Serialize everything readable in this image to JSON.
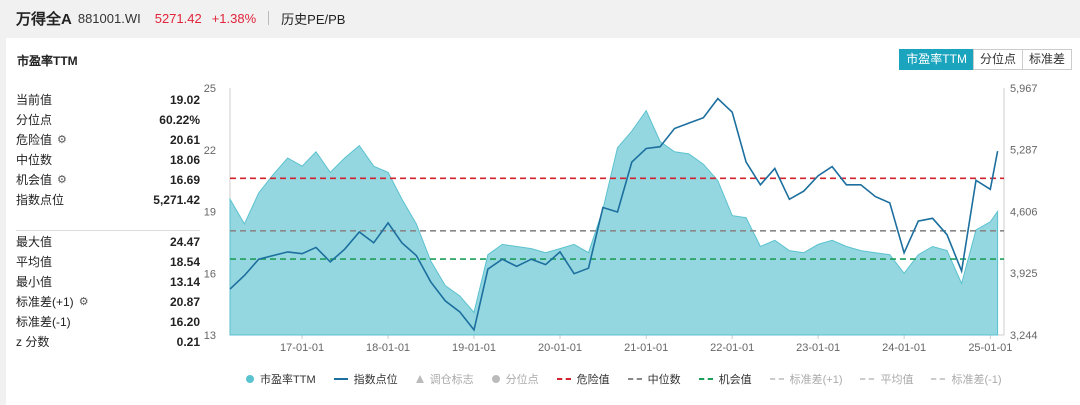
{
  "header": {
    "name": "万得全A",
    "code": "881001.WI",
    "price": "5271.42",
    "change": "+1.38%",
    "tab": "历史PE/PB"
  },
  "card": {
    "title": "市盈率TTM",
    "buttons": [
      "市盈率TTM",
      "分位点",
      "标准差"
    ],
    "active_button": 0
  },
  "stats_top": [
    {
      "label": "当前值",
      "value": "19.02",
      "gear": false
    },
    {
      "label": "分位点",
      "value": "60.22%",
      "gear": false
    },
    {
      "label": "危险值",
      "value": "20.61",
      "gear": true
    },
    {
      "label": "中位数",
      "value": "18.06",
      "gear": false
    },
    {
      "label": "机会值",
      "value": "16.69",
      "gear": true
    },
    {
      "label": "指数点位",
      "value": "5,271.42",
      "gear": false
    }
  ],
  "stats_bottom": [
    {
      "label": "最大值",
      "value": "24.47",
      "gear": false
    },
    {
      "label": "平均值",
      "value": "18.54",
      "gear": false
    },
    {
      "label": "最小值",
      "value": "13.14",
      "gear": false
    },
    {
      "label": "标准差(+1)",
      "value": "20.87",
      "gear": true
    },
    {
      "label": "标准差(-1)",
      "value": "16.20",
      "gear": false
    },
    {
      "label": "z 分数",
      "value": "0.21",
      "gear": false
    }
  ],
  "legend": [
    {
      "label": "市盈率TTM",
      "kind": "dot",
      "color": "#5bc2cf",
      "active": true
    },
    {
      "label": "指数点位",
      "kind": "line",
      "color": "#1c6f9e",
      "active": true
    },
    {
      "label": "调仓标志",
      "kind": "tri",
      "color": "#bbbbbb",
      "active": false
    },
    {
      "label": "分位点",
      "kind": "dot",
      "color": "#bbbbbb",
      "active": false
    },
    {
      "label": "危险值",
      "kind": "dash",
      "color": "#d0232e",
      "active": true
    },
    {
      "label": "中位数",
      "kind": "dash",
      "color": "#888888",
      "active": true
    },
    {
      "label": "机会值",
      "kind": "dash",
      "color": "#1f9e5a",
      "active": true
    },
    {
      "label": "标准差(+1)",
      "kind": "dash",
      "color": "#cccccc",
      "active": false
    },
    {
      "label": "平均值",
      "kind": "dash",
      "color": "#cccccc",
      "active": false
    },
    {
      "label": "标准差(-1)",
      "kind": "dash",
      "color": "#cccccc",
      "active": false
    }
  ],
  "chart_data": {
    "type": "area",
    "xlabel": "",
    "ylabel": "",
    "x_ticks": [
      "17-01-01",
      "18-01-01",
      "19-01-01",
      "20-01-01",
      "21-01-01",
      "22-01-01",
      "23-01-01",
      "24-01-01",
      "25-01-01"
    ],
    "y_ticks_left": [
      "13",
      "16",
      "19",
      "22",
      "25"
    ],
    "y_ticks_right": [
      "3,244",
      "3,925",
      "4,606",
      "5,287",
      "5,967"
    ],
    "ylim_left": [
      13,
      25
    ],
    "ylim_right": [
      3244,
      5967
    ],
    "x_range": [
      "2016-03-01",
      "2025-02-28"
    ],
    "reference_lines": [
      {
        "name": "危险值",
        "value": 20.61,
        "color": "#d0232e"
      },
      {
        "name": "中位数",
        "value": 18.06,
        "color": "#888888"
      },
      {
        "name": "机会值",
        "value": 16.69,
        "color": "#1f9e5a"
      }
    ],
    "series": [
      {
        "name": "市盈率TTM",
        "axis": "left",
        "color": "#5bc2cf",
        "x": [
          "2016-03",
          "2016-05",
          "2016-07",
          "2016-09",
          "2016-11",
          "2017-01",
          "2017-03",
          "2017-05",
          "2017-07",
          "2017-09",
          "2017-11",
          "2018-01",
          "2018-03",
          "2018-05",
          "2018-07",
          "2018-09",
          "2018-11",
          "2019-01",
          "2019-03",
          "2019-05",
          "2019-07",
          "2019-09",
          "2019-11",
          "2020-01",
          "2020-03",
          "2020-05",
          "2020-07",
          "2020-09",
          "2020-11",
          "2021-01",
          "2021-03",
          "2021-05",
          "2021-07",
          "2021-09",
          "2021-11",
          "2022-01",
          "2022-03",
          "2022-05",
          "2022-07",
          "2022-09",
          "2022-11",
          "2023-01",
          "2023-03",
          "2023-05",
          "2023-07",
          "2023-09",
          "2023-11",
          "2024-01",
          "2024-03",
          "2024-05",
          "2024-07",
          "2024-09",
          "2024-11",
          "2025-01",
          "2025-02"
        ],
        "values": [
          19.6,
          18.4,
          19.9,
          20.8,
          21.6,
          21.2,
          21.9,
          20.9,
          21.6,
          22.2,
          21.2,
          20.9,
          19.6,
          18.4,
          16.6,
          15.4,
          14.9,
          14.1,
          16.9,
          17.4,
          17.3,
          17.2,
          17.0,
          17.2,
          17.4,
          17.0,
          19.1,
          22.1,
          22.9,
          23.9,
          22.4,
          21.9,
          21.8,
          21.3,
          20.5,
          18.8,
          18.7,
          17.3,
          17.6,
          17.1,
          17.0,
          17.4,
          17.6,
          17.3,
          17.1,
          17.0,
          16.9,
          16.0,
          16.9,
          17.3,
          17.1,
          15.5,
          18.1,
          18.5,
          19.0
        ]
      },
      {
        "name": "指数点位",
        "axis": "right",
        "color": "#1c6f9e",
        "x": [
          "2016-03",
          "2016-05",
          "2016-07",
          "2016-09",
          "2016-11",
          "2017-01",
          "2017-03",
          "2017-05",
          "2017-07",
          "2017-09",
          "2017-11",
          "2018-01",
          "2018-03",
          "2018-05",
          "2018-07",
          "2018-09",
          "2018-11",
          "2019-01",
          "2019-03",
          "2019-05",
          "2019-07",
          "2019-09",
          "2019-11",
          "2020-01",
          "2020-03",
          "2020-05",
          "2020-07",
          "2020-09",
          "2020-11",
          "2021-01",
          "2021-03",
          "2021-05",
          "2021-07",
          "2021-09",
          "2021-11",
          "2022-01",
          "2022-03",
          "2022-05",
          "2022-07",
          "2022-09",
          "2022-11",
          "2023-01",
          "2023-03",
          "2023-05",
          "2023-07",
          "2023-09",
          "2023-11",
          "2024-01",
          "2024-03",
          "2024-05",
          "2024-07",
          "2024-09",
          "2024-11",
          "2025-01",
          "2025-02"
        ],
        "values": [
          3750,
          3900,
          4080,
          4120,
          4160,
          4140,
          4210,
          4050,
          4190,
          4380,
          4260,
          4480,
          4260,
          4120,
          3830,
          3620,
          3500,
          3300,
          3970,
          4080,
          4000,
          4080,
          4020,
          4160,
          3920,
          3980,
          4650,
          4600,
          5150,
          5300,
          5320,
          5520,
          5580,
          5640,
          5850,
          5700,
          5150,
          4900,
          5080,
          4740,
          4830,
          5000,
          5100,
          4900,
          4900,
          4770,
          4700,
          4150,
          4500,
          4530,
          4350,
          3950,
          4950,
          4850,
          5271
        ]
      }
    ]
  }
}
